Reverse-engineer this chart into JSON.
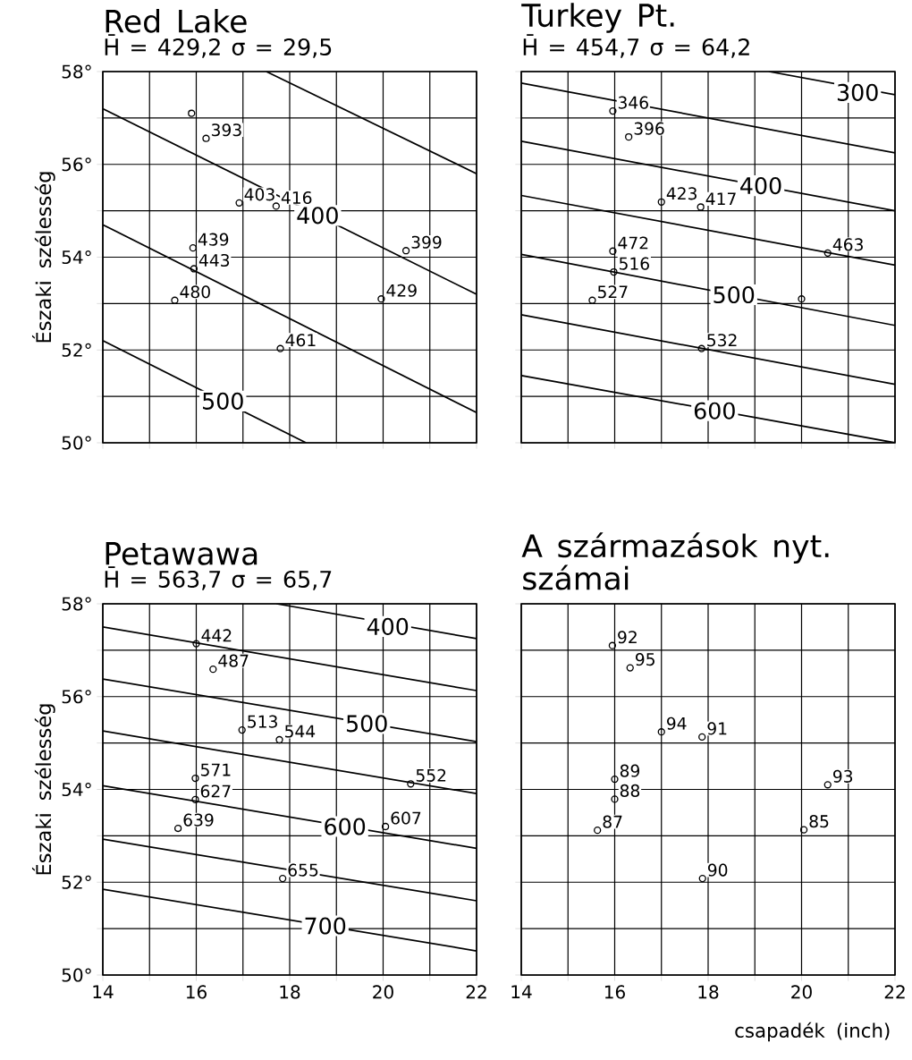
{
  "chart_data": [
    {
      "type": "scatter",
      "title": "Red Lake",
      "subtitle": "H̄ = 429,2   σ = 29,5",
      "ylabel": "Északi szélesség",
      "xlim": [
        14,
        22
      ],
      "ylim": [
        50,
        58
      ],
      "xticks": [
        14,
        {
          "value": 15,
          "label": null
        },
        16,
        {
          "value": 17,
          "label": null
        },
        18,
        {
          "value": 19,
          "label": null
        },
        20,
        {
          "value": 21,
          "label": null
        },
        22
      ],
      "yticks": [
        {
          "value": 50,
          "label": "50°"
        },
        {
          "value": 51,
          "label": null
        },
        {
          "value": 52,
          "label": "52°"
        },
        {
          "value": 53,
          "label": null
        },
        {
          "value": 54,
          "label": "54°"
        },
        {
          "value": 55,
          "label": null
        },
        {
          "value": 56,
          "label": "56°"
        },
        {
          "value": 57,
          "label": null
        },
        {
          "value": 58,
          "label": "58°"
        }
      ],
      "grid": true,
      "tick_labels": "y",
      "series": [
        {
          "type": "scatter",
          "marker": "circle",
          "color": "#000000",
          "x": [
            15.9,
            16.21,
            16.92,
            17.71,
            15.93,
            15.95,
            15.54,
            17.8,
            20.49,
            19.96
          ],
          "values": [
            57.1,
            56.56,
            55.17,
            55.1,
            54.2,
            53.75,
            53.07,
            52.03,
            54.14,
            53.1
          ]
        },
        {
          "type": "line",
          "color": "#000000",
          "x": [
            17.5,
            22
          ],
          "values": [
            58,
            55.8
          ]
        },
        {
          "type": "line",
          "color": "#000000",
          "x": [
            14,
            22
          ],
          "values": [
            57.2,
            53.2
          ]
        },
        {
          "type": "line",
          "color": "#000000",
          "x": [
            14,
            22
          ],
          "values": [
            54.7,
            50.65
          ]
        },
        {
          "type": "line",
          "color": "#000000",
          "x": [
            14,
            18.35
          ],
          "values": [
            52.2,
            50
          ]
        }
      ],
      "annotations": [
        {
          "text": "393",
          "x": 16.21,
          "y": 56.56
        },
        {
          "text": "403",
          "x": 16.92,
          "y": 55.17
        },
        {
          "text": "416",
          "x": 17.71,
          "y": 55.1
        },
        {
          "text": "439",
          "x": 15.93,
          "y": 54.2
        },
        {
          "text": "443",
          "x": 15.95,
          "y": 53.75
        },
        {
          "text": "480",
          "x": 15.54,
          "y": 53.07
        },
        {
          "text": "461",
          "x": 17.8,
          "y": 52.03
        },
        {
          "text": "399",
          "x": 20.49,
          "y": 54.14
        },
        {
          "text": "429",
          "x": 19.96,
          "y": 53.1
        },
        {
          "text": "400",
          "x": 18.6,
          "y": 54.9
        },
        {
          "text": "500",
          "x": 16.57,
          "y": 50.9
        }
      ]
    },
    {
      "type": "scatter",
      "title": "Turkey Pt.",
      "subtitle": "H̄ = 454,7   σ = 64,2",
      "xlim": [
        14,
        22
      ],
      "ylim": [
        50,
        58
      ],
      "xticks": [
        14,
        {
          "value": 15,
          "label": null
        },
        16,
        {
          "value": 17,
          "label": null
        },
        18,
        {
          "value": 19,
          "label": null
        },
        20,
        {
          "value": 21,
          "label": null
        },
        22
      ],
      "yticks": [
        50,
        51,
        52,
        53,
        54,
        55,
        56,
        57,
        58
      ],
      "grid": true,
      "tick_labels": false,
      "series": [
        {
          "type": "scatter",
          "marker": "circle",
          "color": "#000000",
          "x": [
            15.96,
            16.3,
            17.0,
            17.84,
            15.96,
            15.98,
            15.52,
            20.0,
            17.86,
            20.56
          ],
          "values": [
            57.15,
            56.59,
            55.19,
            55.08,
            54.13,
            53.68,
            53.07,
            53.1,
            52.03,
            54.09
          ]
        },
        {
          "type": "line",
          "color": "#000000",
          "x": [
            19.3,
            22
          ],
          "values": [
            58,
            57.5
          ]
        },
        {
          "type": "line",
          "color": "#000000",
          "x": [
            14,
            22
          ],
          "values": [
            57.75,
            56.25
          ]
        },
        {
          "type": "line",
          "color": "#000000",
          "x": [
            14,
            22
          ],
          "values": [
            56.5,
            55.0
          ]
        },
        {
          "type": "line",
          "color": "#000000",
          "x": [
            14,
            22
          ],
          "values": [
            55.33,
            53.83
          ]
        },
        {
          "type": "line",
          "color": "#000000",
          "x": [
            14,
            22
          ],
          "values": [
            54.06,
            52.53
          ]
        },
        {
          "type": "line",
          "color": "#000000",
          "x": [
            14,
            22
          ],
          "values": [
            52.76,
            51.26
          ]
        },
        {
          "type": "line",
          "color": "#000000",
          "x": [
            14,
            22
          ],
          "values": [
            51.45,
            50.0
          ]
        }
      ],
      "annotations": [
        {
          "text": "346",
          "x": 15.96,
          "y": 57.15
        },
        {
          "text": "396",
          "x": 16.3,
          "y": 56.59
        },
        {
          "text": "423",
          "x": 17.0,
          "y": 55.19
        },
        {
          "text": "417",
          "x": 17.84,
          "y": 55.08
        },
        {
          "text": "472",
          "x": 15.96,
          "y": 54.13
        },
        {
          "text": "516",
          "x": 15.98,
          "y": 53.68
        },
        {
          "text": "527",
          "x": 15.52,
          "y": 53.07
        },
        {
          "text": "532",
          "x": 17.86,
          "y": 52.03
        },
        {
          "text": "463",
          "x": 20.56,
          "y": 54.09
        },
        {
          "text": "300",
          "x": 21.2,
          "y": 57.55
        },
        {
          "text": "400",
          "x": 19.13,
          "y": 55.54
        },
        {
          "text": "500",
          "x": 18.55,
          "y": 53.19
        },
        {
          "text": "600",
          "x": 18.14,
          "y": 50.69
        }
      ]
    },
    {
      "type": "scatter",
      "title": "Petawawa",
      "subtitle": "H̄ = 563,7   σ = 65,7",
      "ylabel": "Északi szélesség",
      "xlim": [
        14,
        22
      ],
      "ylim": [
        50,
        58
      ],
      "xticks": [
        14,
        {
          "value": 15,
          "label": null
        },
        16,
        {
          "value": 17,
          "label": null
        },
        18,
        {
          "value": 19,
          "label": null
        },
        20,
        {
          "value": 21,
          "label": null
        },
        22
      ],
      "yticks": [
        {
          "value": 50,
          "label": "50°"
        },
        {
          "value": 51,
          "label": null
        },
        {
          "value": 52,
          "label": "52°"
        },
        {
          "value": 53,
          "label": null
        },
        {
          "value": 54,
          "label": "54°"
        },
        {
          "value": 55,
          "label": null
        },
        {
          "value": 56,
          "label": "56°"
        },
        {
          "value": 57,
          "label": null
        },
        {
          "value": 58,
          "label": "58°"
        }
      ],
      "grid": true,
      "series": [
        {
          "type": "scatter",
          "marker": "circle",
          "color": "#000000",
          "x": [
            16.0,
            16.36,
            16.98,
            17.78,
            15.98,
            15.98,
            15.61,
            17.85,
            20.59,
            20.05
          ],
          "values": [
            57.14,
            56.59,
            55.28,
            55.07,
            54.24,
            53.78,
            53.16,
            52.08,
            54.12,
            53.2
          ]
        },
        {
          "type": "line",
          "color": "#000000",
          "x": [
            17.72,
            22
          ],
          "values": [
            58,
            57.25
          ]
        },
        {
          "type": "line",
          "color": "#000000",
          "x": [
            14,
            22
          ],
          "values": [
            57.5,
            56.13
          ]
        },
        {
          "type": "line",
          "color": "#000000",
          "x": [
            14,
            22
          ],
          "values": [
            56.38,
            55.03
          ]
        },
        {
          "type": "line",
          "color": "#000000",
          "x": [
            14,
            22
          ],
          "values": [
            55.26,
            53.91
          ]
        },
        {
          "type": "line",
          "color": "#000000",
          "x": [
            14,
            22
          ],
          "values": [
            54.08,
            52.73
          ]
        },
        {
          "type": "line",
          "color": "#000000",
          "x": [
            14,
            22
          ],
          "values": [
            52.93,
            51.6
          ]
        },
        {
          "type": "line",
          "color": "#000000",
          "x": [
            14,
            22
          ],
          "values": [
            51.85,
            50.52
          ]
        }
      ],
      "annotations": [
        {
          "text": "442",
          "x": 16.0,
          "y": 57.14
        },
        {
          "text": "487",
          "x": 16.36,
          "y": 56.59
        },
        {
          "text": "513",
          "x": 16.98,
          "y": 55.28
        },
        {
          "text": "544",
          "x": 17.78,
          "y": 55.07
        },
        {
          "text": "571",
          "x": 15.98,
          "y": 54.24
        },
        {
          "text": "627",
          "x": 15.98,
          "y": 53.78
        },
        {
          "text": "639",
          "x": 15.61,
          "y": 53.16
        },
        {
          "text": "655",
          "x": 17.85,
          "y": 52.08
        },
        {
          "text": "552",
          "x": 20.59,
          "y": 54.12
        },
        {
          "text": "607",
          "x": 20.05,
          "y": 53.2
        },
        {
          "text": "400",
          "x": 20.1,
          "y": 57.51
        },
        {
          "text": "500",
          "x": 19.65,
          "y": 55.42
        },
        {
          "text": "600",
          "x": 19.18,
          "y": 53.2
        },
        {
          "text": "700",
          "x": 18.76,
          "y": 51.06
        }
      ]
    },
    {
      "type": "scatter",
      "title": "A származások nyt. számai",
      "xlabel": "csapadék (inch)",
      "xlim": [
        14,
        22
      ],
      "ylim": [
        50,
        58
      ],
      "xticks": [
        14,
        {
          "value": 15,
          "label": null
        },
        16,
        {
          "value": 17,
          "label": null
        },
        18,
        {
          "value": 19,
          "label": null
        },
        20,
        {
          "value": 21,
          "label": null
        },
        22
      ],
      "yticks": [
        50,
        51,
        52,
        53,
        54,
        55,
        56,
        57,
        58
      ],
      "grid": true,
      "tick_labels": "x",
      "series": [
        {
          "type": "scatter",
          "marker": "circle",
          "color": "#000000",
          "x": [
            15.95,
            16.33,
            17.0,
            17.87,
            16.0,
            16.0,
            15.63,
            17.88,
            20.56,
            20.05
          ],
          "values": [
            57.1,
            56.62,
            55.24,
            55.13,
            54.22,
            53.79,
            53.12,
            52.08,
            54.1,
            53.13
          ]
        }
      ],
      "annotations": [
        {
          "text": "92",
          "x": 15.95,
          "y": 57.1
        },
        {
          "text": "95",
          "x": 16.33,
          "y": 56.62
        },
        {
          "text": "94",
          "x": 17.0,
          "y": 55.24
        },
        {
          "text": "91",
          "x": 17.87,
          "y": 55.13
        },
        {
          "text": "89",
          "x": 16.0,
          "y": 54.22
        },
        {
          "text": "88",
          "x": 16.0,
          "y": 53.79
        },
        {
          "text": "87",
          "x": 15.63,
          "y": 53.12
        },
        {
          "text": "90",
          "x": 17.88,
          "y": 52.08
        },
        {
          "text": "93",
          "x": 20.56,
          "y": 54.1
        },
        {
          "text": "85",
          "x": 20.05,
          "y": 53.13
        }
      ]
    }
  ]
}
